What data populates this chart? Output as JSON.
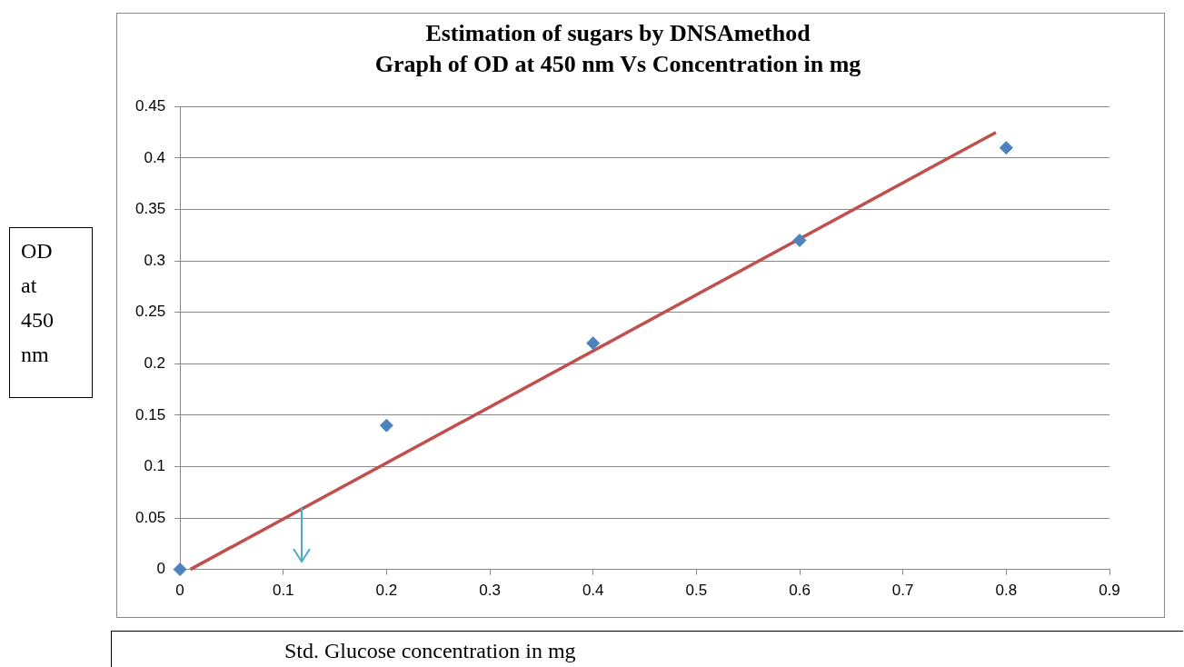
{
  "chart_data": {
    "type": "scatter",
    "title": "Estimation of sugars by DNSAmethod",
    "subtitle": "Graph of OD at 450 nm Vs Concentration in mg",
    "xlabel": "Std. Glucose concentration in mg",
    "ylabel": "OD at 450 nm",
    "series": [
      {
        "color": "#4f81bd",
        "x": [
          0,
          0.2,
          0.4,
          0.6,
          0.8
        ],
        "values": [
          0,
          0.14,
          0.22,
          0.32,
          0.41
        ],
        "marker": "diamond"
      },
      {
        "type": "line",
        "color": "#c0504d",
        "x": [
          0.01,
          0.79
        ],
        "values": [
          0,
          0.425
        ],
        "marker": "none"
      }
    ],
    "xlim": [
      0,
      0.9
    ],
    "xticks": [
      0,
      0.1,
      0.2,
      0.3,
      0.4,
      0.5,
      0.6,
      0.7,
      0.8,
      0.9
    ],
    "ylim": [
      0,
      0.45
    ],
    "yticks": [
      0,
      0.05,
      0.1,
      0.15,
      0.2,
      0.25,
      0.3,
      0.35,
      0.4,
      0.45
    ],
    "grid": "y",
    "legend": false
  }
}
